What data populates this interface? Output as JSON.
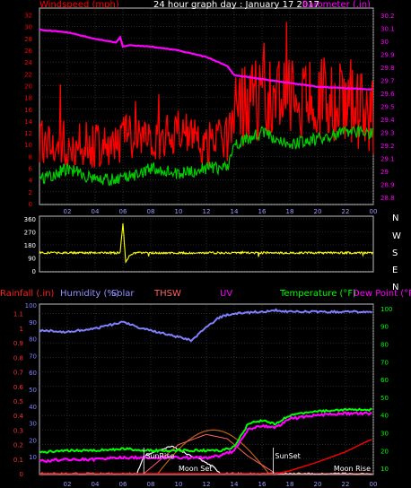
{
  "header": {
    "left": "Windspeed (mph)",
    "center": "24 hour graph day : January 17 2017",
    "right": "Barometer (.in)"
  },
  "lower_header": {
    "rainfall": "Rainfall (.in)",
    "humidity": "Humidity (%)",
    "solar": "Solar",
    "thsw": "THSW",
    "uv": "UV",
    "temperature": "Temperature (°F)",
    "dewpoint": "Dew Point (°F)"
  },
  "compass": [
    "N",
    "W",
    "S",
    "E",
    "N"
  ],
  "colors": {
    "wind": "#ff0000",
    "gust_low": "#00cc00",
    "barometer": "#ff00ff",
    "direction": "#ffff00",
    "humidity": "#8080ff",
    "temperature": "#00ff00",
    "dewpoint": "#ff00ff",
    "thsw": "#ff6060",
    "solar": "#ffffff",
    "rain": "#ff0000",
    "axis_left_top": "#ff0000",
    "axis_right_top": "#ff00ff",
    "axis_lower_left": "#8080ff",
    "axis_lower_right": "#00ff00"
  },
  "annotations": {
    "sunrise": "SunRise",
    "sunset": "SunSet",
    "moonset": "Moon Set",
    "moonrise": "Moon Rise"
  },
  "chart_data": [
    {
      "type": "line",
      "name": "windspeed-barometer",
      "x_ticks": [
        "02",
        "04",
        "06",
        "08",
        "10",
        "12",
        "14",
        "16",
        "18",
        "20",
        "22",
        "00"
      ],
      "y_left_ticks": [
        "0",
        "2",
        "4",
        "6",
        "8",
        "10",
        "12",
        "14",
        "16",
        "18",
        "20",
        "22",
        "24",
        "26",
        "28",
        "30",
        "32"
      ],
      "y_left_range": [
        0,
        33
      ],
      "y_right_ticks": [
        "28.8",
        "28.9",
        "29",
        "29.1",
        "29.2",
        "29.3",
        "29.4",
        "29.5",
        "29.6",
        "29.7",
        "29.8",
        "29.9",
        "30",
        "30.1",
        "30.2"
      ],
      "y_right_range": [
        28.75,
        30.25
      ],
      "series": [
        {
          "key": "wind",
          "hours": [
            0,
            2,
            4,
            6,
            8,
            10,
            12,
            13.5,
            14,
            16,
            18,
            20,
            22,
            24
          ],
          "values": [
            11,
            10,
            10,
            11,
            11,
            12,
            10,
            11,
            16,
            18,
            18,
            18,
            17,
            15
          ]
        },
        {
          "key": "wind_low",
          "hours": [
            0,
            2,
            4,
            6,
            8,
            10,
            12,
            13.5,
            14,
            16,
            18,
            20,
            22,
            24
          ],
          "values": [
            4,
            6,
            4,
            4,
            6,
            5,
            6,
            6,
            10,
            12,
            10,
            11,
            12,
            12
          ]
        },
        {
          "key": "barometer",
          "hours": [
            0,
            2,
            4,
            5.5,
            5.8,
            6,
            6.5,
            8,
            10,
            12,
            13.5,
            14,
            16,
            18,
            20,
            22,
            24
          ],
          "values": [
            30.09,
            30.07,
            30.02,
            29.99,
            30.03,
            29.96,
            29.97,
            29.96,
            29.93,
            29.88,
            29.81,
            29.74,
            29.71,
            29.68,
            29.65,
            29.64,
            29.63
          ]
        }
      ]
    },
    {
      "type": "line",
      "name": "wind-direction",
      "y_ticks": [
        "0",
        "90",
        "180",
        "270",
        "360"
      ],
      "y_range": [
        0,
        360
      ],
      "series": [
        {
          "key": "direction",
          "hours": [
            0,
            5.8,
            6,
            6.2,
            6.5,
            7,
            24
          ],
          "values": [
            125,
            125,
            330,
            60,
            110,
            125,
            125
          ]
        }
      ]
    },
    {
      "type": "line",
      "name": "humidity-temperature",
      "x_ticks": [
        "02",
        "04",
        "06",
        "08",
        "10",
        "12",
        "14",
        "16",
        "18",
        "20",
        "22",
        "00"
      ],
      "y_left_ticks": [
        "0",
        "0.1",
        "0.2",
        "0.3",
        "0.4",
        "0.5",
        "0.6",
        "0.7",
        "0.8",
        "0.9",
        "1",
        "1.1"
      ],
      "y_left_range": [
        0,
        1.16
      ],
      "y_humidity_ticks": [
        "10",
        "20",
        "30",
        "40",
        "50",
        "60",
        "70",
        "80",
        "90",
        "100"
      ],
      "y_humidity_range": [
        0,
        100
      ],
      "y_right_ticks": [
        "10",
        "20",
        "30",
        "40",
        "50",
        "60",
        "70",
        "80",
        "90",
        "100"
      ],
      "y_right_range": [
        7,
        102
      ],
      "series": [
        {
          "key": "humidity",
          "hours": [
            0,
            2,
            4,
            5,
            6,
            7,
            8,
            9,
            10,
            11,
            11.5,
            12,
            13,
            14,
            16,
            17,
            18,
            20,
            22,
            24
          ],
          "values": [
            85,
            84,
            86,
            88,
            90,
            87,
            85,
            83,
            81,
            79,
            83,
            87,
            93,
            95,
            96,
            97,
            96,
            96,
            96,
            96
          ]
        },
        {
          "key": "temperature",
          "hours": [
            0,
            2,
            4,
            6,
            8,
            10,
            12,
            13,
            14,
            15,
            16,
            17,
            18,
            20,
            22,
            24
          ],
          "values": [
            19,
            20,
            20,
            21,
            20,
            20,
            20,
            20,
            22,
            35,
            37,
            35,
            40,
            42,
            43,
            43
          ]
        },
        {
          "key": "dewpoint",
          "hours": [
            0,
            2,
            4,
            6,
            8,
            10,
            12,
            13,
            14,
            15,
            16,
            17,
            18,
            20,
            22,
            24
          ],
          "values": [
            14,
            15,
            15,
            16,
            16,
            16,
            16,
            17,
            20,
            32,
            34,
            33,
            38,
            40,
            41,
            41
          ]
        },
        {
          "key": "solar",
          "hours": [
            0,
            7,
            7.5,
            8.5,
            9.5,
            10.5,
            11.5,
            12.5,
            13,
            24
          ],
          "values": [
            0,
            0,
            0.12,
            0.16,
            0.19,
            0.14,
            0.1,
            0.05,
            0,
            0
          ]
        },
        {
          "key": "thsw",
          "hours": [
            0,
            7.5,
            10,
            12,
            13.5,
            15,
            17,
            24
          ],
          "values": [
            0,
            0,
            0.2,
            0.27,
            0.24,
            0.12,
            0,
            0
          ]
        },
        {
          "key": "rain",
          "hours": [
            0,
            17,
            18,
            20,
            22,
            23.5,
            24
          ],
          "values": [
            0,
            0,
            0.02,
            0.08,
            0.15,
            0.22,
            0.24
          ]
        }
      ]
    }
  ]
}
